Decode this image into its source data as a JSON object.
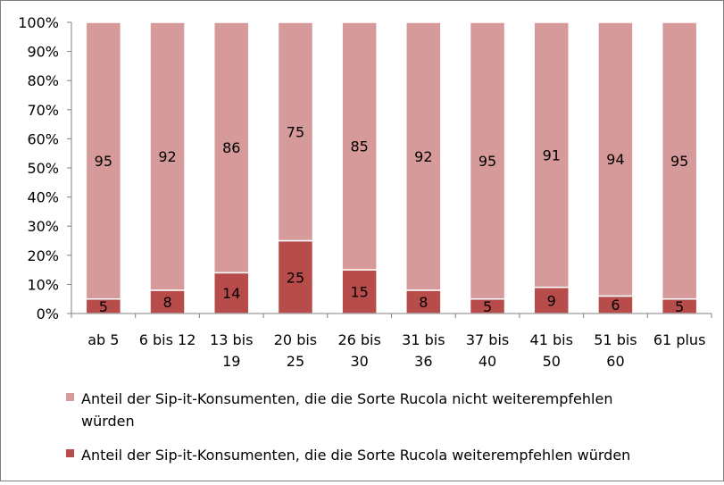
{
  "chart_data": {
    "type": "bar",
    "stacked": true,
    "percent": true,
    "categories": [
      [
        "ab 5"
      ],
      [
        "6 bis 12"
      ],
      [
        "13 bis",
        "19"
      ],
      [
        "20 bis",
        "25"
      ],
      [
        "26 bis",
        "30"
      ],
      [
        "31 bis",
        "36"
      ],
      [
        "37 bis",
        "40"
      ],
      [
        "41 bis",
        "50"
      ],
      [
        "51 bis",
        "60"
      ],
      [
        "61 plus"
      ]
    ],
    "series": [
      {
        "name": "Anteil der Sip-it-Konsumenten, die die Sorte Rucola weiterempfehlen würden",
        "legend_lines": [
          "Anteil der Sip-it-Konsumenten, die die Sorte Rucola weiterempfehlen würden"
        ],
        "color": "#b84c4a",
        "values": [
          5,
          8,
          14,
          25,
          15,
          8,
          5,
          9,
          6,
          5
        ]
      },
      {
        "name": "Anteil der Sip-it-Konsumenten, die die Sorte Rucola nicht weiterempfehlen würden",
        "legend_lines": [
          "Anteil der Sip-it-Konsumenten, die die Sorte Rucola nicht weiterempfehlen",
          "würden"
        ],
        "color": "#d59a99",
        "values": [
          95,
          92,
          86,
          75,
          85,
          92,
          95,
          91,
          94,
          95
        ]
      }
    ],
    "y_ticks": [
      "0%",
      "10%",
      "20%",
      "30%",
      "40%",
      "50%",
      "60%",
      "70%",
      "80%",
      "90%",
      "100%"
    ],
    "ylim": [
      0,
      100
    ],
    "grid": false,
    "legend_position": "bottom"
  }
}
